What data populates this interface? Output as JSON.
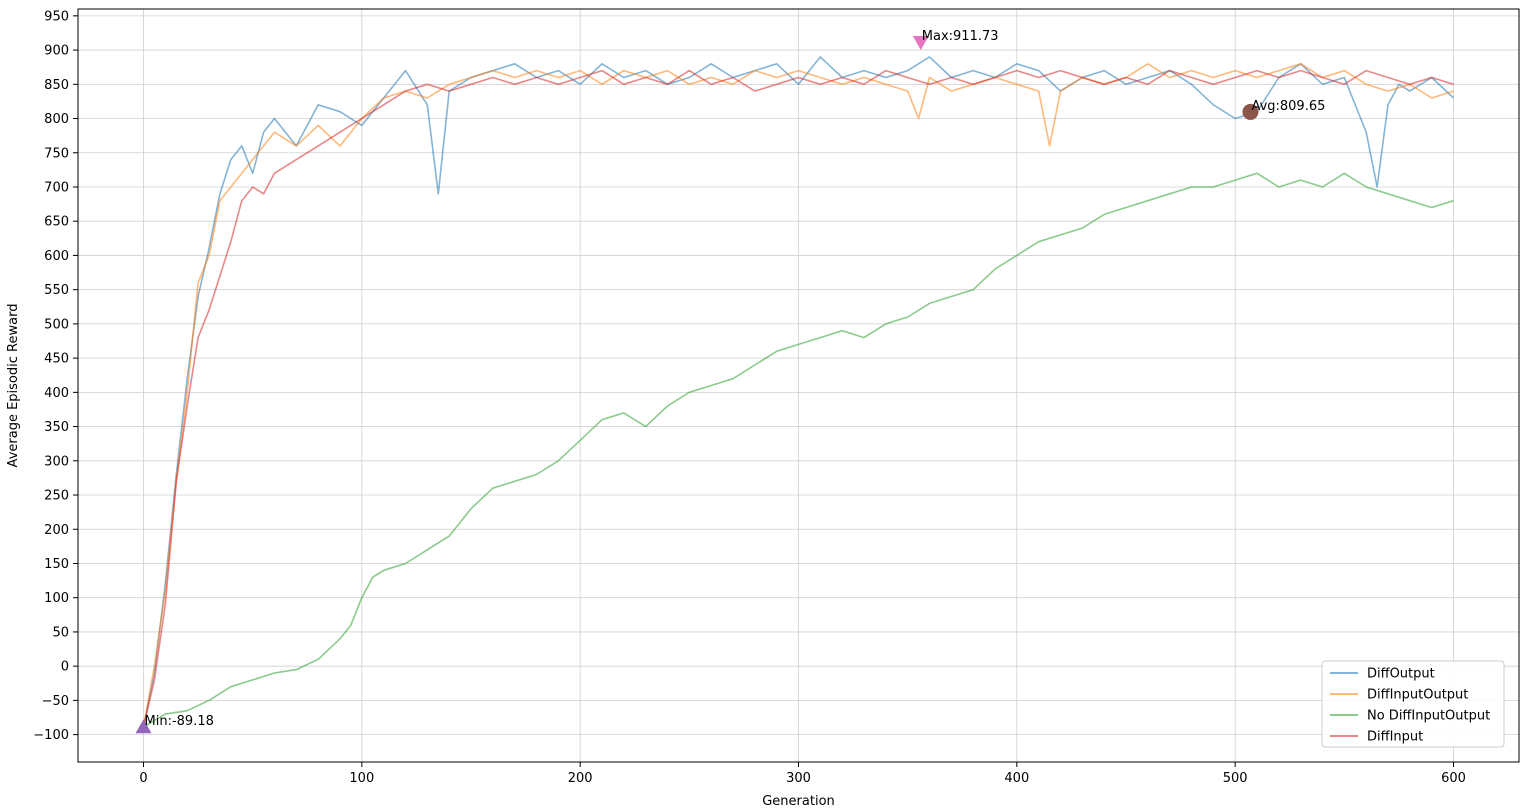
{
  "chart_data": {
    "type": "line",
    "xlabel": "Generation",
    "ylabel": "Average Episodic Reward",
    "xlim": [
      -30,
      630
    ],
    "ylim": [
      -140,
      960
    ],
    "xticks": [
      0,
      100,
      200,
      300,
      400,
      500,
      600
    ],
    "yticks": [
      -100,
      -50,
      0,
      50,
      100,
      150,
      200,
      250,
      300,
      350,
      400,
      450,
      500,
      550,
      600,
      650,
      700,
      750,
      800,
      850,
      900,
      950
    ],
    "grid": true,
    "legend_position": "lower-right",
    "series": [
      {
        "name": "DiffOutput",
        "color": "#1f77b4",
        "x": [
          0,
          5,
          10,
          15,
          20,
          25,
          30,
          35,
          40,
          45,
          50,
          55,
          60,
          70,
          80,
          90,
          100,
          110,
          120,
          130,
          135,
          140,
          150,
          160,
          170,
          180,
          190,
          200,
          210,
          220,
          230,
          240,
          250,
          260,
          270,
          280,
          290,
          300,
          310,
          320,
          330,
          340,
          350,
          360,
          370,
          380,
          390,
          400,
          410,
          420,
          430,
          440,
          450,
          460,
          470,
          480,
          490,
          500,
          510,
          520,
          530,
          540,
          550,
          560,
          565,
          570,
          575,
          580,
          590,
          600
        ],
        "y": [
          -89,
          -10,
          120,
          280,
          420,
          540,
          610,
          690,
          740,
          760,
          720,
          780,
          800,
          760,
          820,
          810,
          790,
          830,
          870,
          820,
          690,
          840,
          860,
          870,
          880,
          860,
          870,
          850,
          880,
          860,
          870,
          850,
          860,
          880,
          860,
          870,
          880,
          850,
          890,
          860,
          870,
          860,
          870,
          890,
          860,
          870,
          860,
          880,
          870,
          840,
          860,
          870,
          850,
          860,
          870,
          850,
          820,
          800,
          810,
          860,
          880,
          850,
          860,
          780,
          700,
          820,
          850,
          840,
          860,
          830
        ]
      },
      {
        "name": "DiffInputOutput",
        "color": "#ff7f0e",
        "x": [
          0,
          5,
          10,
          15,
          20,
          25,
          30,
          35,
          40,
          45,
          50,
          55,
          60,
          70,
          80,
          90,
          100,
          110,
          120,
          130,
          140,
          150,
          160,
          170,
          180,
          190,
          200,
          210,
          220,
          230,
          240,
          250,
          260,
          270,
          280,
          290,
          300,
          310,
          320,
          330,
          340,
          350,
          355,
          360,
          370,
          380,
          390,
          400,
          410,
          415,
          420,
          430,
          440,
          450,
          460,
          470,
          480,
          490,
          500,
          510,
          520,
          530,
          540,
          550,
          560,
          570,
          580,
          590,
          600
        ],
        "y": [
          -89,
          0,
          110,
          270,
          400,
          560,
          600,
          680,
          700,
          720,
          740,
          760,
          780,
          760,
          790,
          760,
          800,
          830,
          840,
          830,
          850,
          860,
          870,
          860,
          870,
          860,
          870,
          850,
          870,
          860,
          870,
          850,
          860,
          850,
          870,
          860,
          870,
          860,
          850,
          860,
          850,
          840,
          800,
          860,
          840,
          850,
          860,
          850,
          840,
          760,
          840,
          860,
          850,
          860,
          880,
          860,
          870,
          860,
          870,
          860,
          870,
          880,
          860,
          870,
          850,
          840,
          850,
          830,
          840
        ]
      },
      {
        "name": "No DiffInputOutput",
        "color": "#2ca02c",
        "x": [
          0,
          10,
          20,
          30,
          40,
          50,
          60,
          70,
          80,
          90,
          95,
          100,
          105,
          110,
          120,
          130,
          140,
          150,
          160,
          170,
          180,
          190,
          200,
          210,
          220,
          230,
          240,
          250,
          260,
          270,
          280,
          290,
          300,
          310,
          320,
          330,
          340,
          350,
          360,
          370,
          380,
          390,
          400,
          410,
          420,
          430,
          440,
          450,
          460,
          470,
          480,
          490,
          500,
          510,
          520,
          530,
          540,
          550,
          560,
          570,
          580,
          590,
          600
        ],
        "y": [
          -89,
          -70,
          -65,
          -50,
          -30,
          -20,
          -10,
          -5,
          10,
          40,
          60,
          100,
          130,
          140,
          150,
          170,
          190,
          230,
          260,
          270,
          280,
          300,
          330,
          360,
          370,
          350,
          380,
          400,
          410,
          420,
          440,
          460,
          470,
          480,
          490,
          480,
          500,
          510,
          530,
          540,
          550,
          580,
          600,
          620,
          630,
          640,
          660,
          670,
          680,
          690,
          700,
          700,
          710,
          720,
          700,
          710,
          700,
          720,
          700,
          690,
          680,
          670,
          680
        ]
      },
      {
        "name": "DiffInput",
        "color": "#d62728",
        "x": [
          0,
          5,
          10,
          15,
          20,
          25,
          30,
          35,
          40,
          45,
          50,
          55,
          60,
          70,
          80,
          90,
          100,
          110,
          120,
          130,
          140,
          150,
          160,
          170,
          180,
          190,
          200,
          210,
          220,
          230,
          240,
          250,
          260,
          270,
          280,
          290,
          300,
          310,
          320,
          330,
          340,
          350,
          360,
          370,
          380,
          390,
          400,
          410,
          420,
          430,
          440,
          450,
          460,
          470,
          480,
          490,
          500,
          510,
          520,
          530,
          540,
          550,
          560,
          570,
          580,
          590,
          600
        ],
        "y": [
          -89,
          -20,
          90,
          270,
          380,
          480,
          520,
          570,
          620,
          680,
          700,
          690,
          720,
          740,
          760,
          780,
          800,
          820,
          840,
          850,
          840,
          850,
          860,
          850,
          860,
          850,
          860,
          870,
          850,
          860,
          850,
          870,
          850,
          860,
          840,
          850,
          860,
          850,
          860,
          850,
          870,
          860,
          850,
          860,
          850,
          860,
          870,
          860,
          870,
          860,
          850,
          860,
          850,
          870,
          860,
          850,
          860,
          870,
          860,
          870,
          860,
          850,
          870,
          860,
          850,
          860,
          850
        ]
      }
    ],
    "annotations": [
      {
        "label": "Min:-89.18",
        "x": 0,
        "y": -89.18,
        "marker": "triangle-up",
        "color": "#9467bd"
      },
      {
        "label": "Max:911.73",
        "x": 356,
        "y": 911.73,
        "marker": "triangle-down",
        "color": "#e377c2"
      },
      {
        "label": "Avg:809.65",
        "x": 507,
        "y": 809.65,
        "marker": "circle",
        "color": "#8c564b"
      }
    ]
  }
}
